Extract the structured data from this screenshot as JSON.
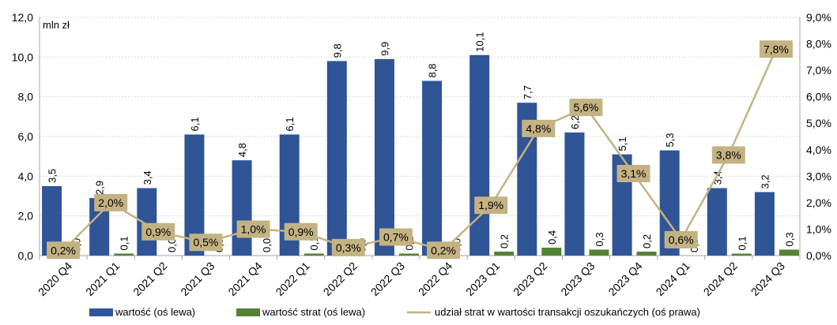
{
  "chart_data": {
    "type": "bar",
    "unit_label": "mln zł",
    "categories": [
      "2020 Q4",
      "2021 Q1",
      "2021 Q2",
      "2021 Q3",
      "2021 Q4",
      "2022 Q1",
      "2022 Q2",
      "2022 Q3",
      "2022 Q4",
      "2023 Q1",
      "2023 Q2",
      "2023 Q3",
      "2023 Q4",
      "2024 Q1",
      "2024 Q2",
      "2024 Q3"
    ],
    "y_left": {
      "ylim": [
        0,
        12
      ],
      "ticks": [
        "0,0",
        "2,0",
        "4,0",
        "6,0",
        "8,0",
        "10,0",
        "12,0"
      ]
    },
    "y_right": {
      "ylim": [
        0,
        9
      ],
      "ticks": [
        "0,0%",
        "1,0%",
        "2,0%",
        "3,0%",
        "4,0%",
        "5,0%",
        "6,0%",
        "7,0%",
        "8,0%",
        "9,0%"
      ]
    },
    "grid": true,
    "legend_position": "bottom",
    "series": [
      {
        "name": "wartość (oś lewa)",
        "type": "bar",
        "axis": "left",
        "color": "#2F5597",
        "values": [
          3.5,
          2.9,
          3.4,
          6.1,
          4.8,
          6.1,
          9.8,
          9.9,
          8.8,
          10.1,
          7.7,
          6.2,
          5.1,
          5.3,
          3.4,
          3.2
        ],
        "labels": [
          "3,5",
          "2,9",
          "3,4",
          "6,1",
          "4,8",
          "6,1",
          "9,8",
          "9,9",
          "8,8",
          "10,1",
          "7,7",
          "6,2",
          "5,1",
          "5,3",
          "3,4",
          "3,2"
        ]
      },
      {
        "name": "wartość strat (oś lewa)",
        "type": "bar",
        "axis": "left",
        "color": "#548235",
        "values": [
          0.0,
          0.1,
          0.0,
          0.0,
          0.0,
          0.1,
          0.0,
          0.1,
          0.0,
          0.2,
          0.4,
          0.3,
          0.2,
          0.0,
          0.1,
          0.3
        ],
        "labels": [
          "0,0",
          "0,1",
          "0,0",
          "0,0",
          "0,0",
          "0,1",
          "0,0",
          "0,1",
          "0,0",
          "0,2",
          "0,4",
          "0,3",
          "0,2",
          "0,0",
          "0,1",
          "0,3"
        ]
      },
      {
        "name": "udział strat w wartości transakcji oszukańczych (oś prawa)",
        "type": "line",
        "axis": "right",
        "color": "#C4B283",
        "values": [
          0.2,
          2.0,
          0.9,
          0.5,
          1.0,
          0.9,
          0.3,
          0.7,
          0.2,
          1.9,
          4.8,
          5.6,
          3.1,
          0.6,
          3.8,
          7.8
        ],
        "labels": [
          "0,2%",
          "2,0%",
          "0,9%",
          "0,5%",
          "1,0%",
          "0,9%",
          "0,3%",
          "0,7%",
          "0,2%",
          "1,9%",
          "4,8%",
          "5,6%",
          "3,1%",
          "0,6%",
          "3,8%",
          "7,8%"
        ]
      }
    ],
    "label_box_color": "#C4B283"
  }
}
